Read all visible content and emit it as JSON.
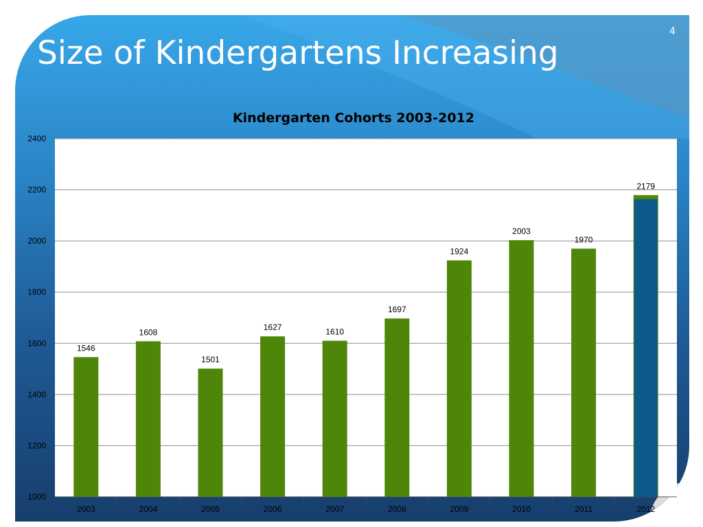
{
  "slide": {
    "title": "Size of Kindergartens Increasing",
    "number": "4",
    "colors": {
      "background_top": "#37a7e8",
      "background_bottom": "#173e6c",
      "title_text": "#ffffff"
    }
  },
  "chart_data": {
    "type": "bar",
    "title": "Kindergarten Cohorts 2003-2012",
    "xlabel": "",
    "ylabel": "",
    "categories": [
      "2003",
      "2004",
      "2005",
      "2006",
      "2007",
      "2008",
      "2009",
      "2010",
      "2011",
      "2012"
    ],
    "values": [
      1546,
      1608,
      1501,
      1627,
      1610,
      1697,
      1924,
      2003,
      1970,
      2179
    ],
    "data_labels": [
      "1546",
      "1608",
      "1501",
      "1627",
      "1610",
      "1697",
      "1924",
      "2003",
      "1970",
      "2179"
    ],
    "ylim": [
      1000,
      2400
    ],
    "yticks": [
      1000,
      1200,
      1400,
      1600,
      1800,
      2000,
      2200,
      2400
    ],
    "grid": true,
    "bar_color": "#4e8609",
    "highlight_index": 9,
    "highlight_color": "#0c5a8c"
  }
}
